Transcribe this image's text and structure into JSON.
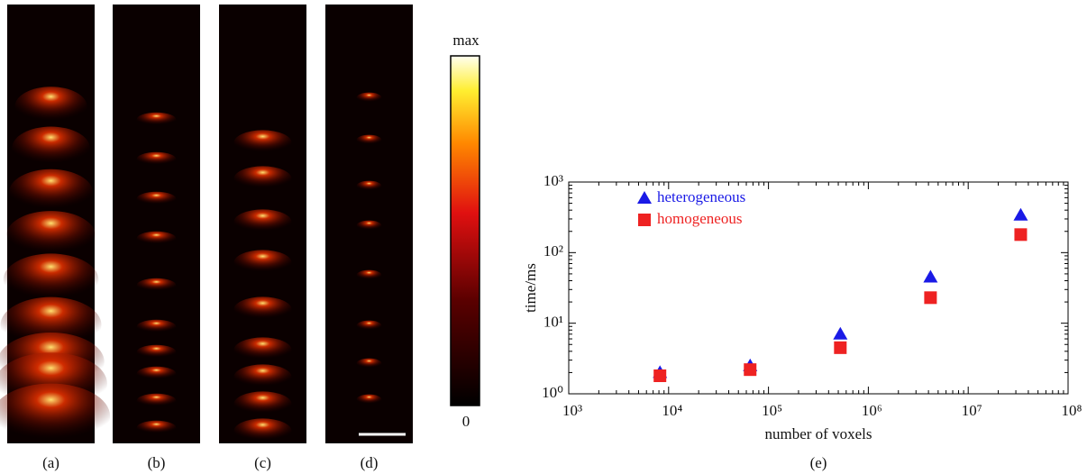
{
  "panels": [
    {
      "label": "(a)"
    },
    {
      "label": "(b)"
    },
    {
      "label": "(c)"
    },
    {
      "label": "(d)"
    }
  ],
  "colorbar": {
    "max_label": "max",
    "min_label": "0"
  },
  "chart_data": {
    "type": "scatter",
    "panel_label": "(e)",
    "xlabel": "number of voxels",
    "ylabel": "time/ms",
    "xscale": "log",
    "yscale": "log",
    "xlim": [
      1000,
      100000000
    ],
    "ylim": [
      1,
      1000
    ],
    "xticks": [
      {
        "value": 1000,
        "label": "10³"
      },
      {
        "value": 10000,
        "label": "10⁴"
      },
      {
        "value": 100000,
        "label": "10⁵"
      },
      {
        "value": 1000000,
        "label": "10⁶"
      },
      {
        "value": 10000000,
        "label": "10⁷"
      },
      {
        "value": 100000000,
        "label": "10⁸"
      }
    ],
    "yticks": [
      {
        "value": 1,
        "label": "10⁰"
      },
      {
        "value": 10,
        "label": "10¹"
      },
      {
        "value": 100,
        "label": "10²"
      },
      {
        "value": 1000,
        "label": "10³"
      }
    ],
    "legend": "upper left",
    "series": [
      {
        "name": "heterogeneous",
        "color": "#1a1ae6",
        "marker": "triangle",
        "x": [
          8192,
          65536,
          524288,
          4194304,
          33554432
        ],
        "values": [
          2.0,
          2.5,
          7,
          45,
          340
        ]
      },
      {
        "name": "homogeneous",
        "color": "#ee2222",
        "marker": "square",
        "x": [
          8192,
          65536,
          524288,
          4194304,
          33554432
        ],
        "values": [
          1.8,
          2.2,
          4.5,
          23,
          180
        ]
      }
    ]
  }
}
